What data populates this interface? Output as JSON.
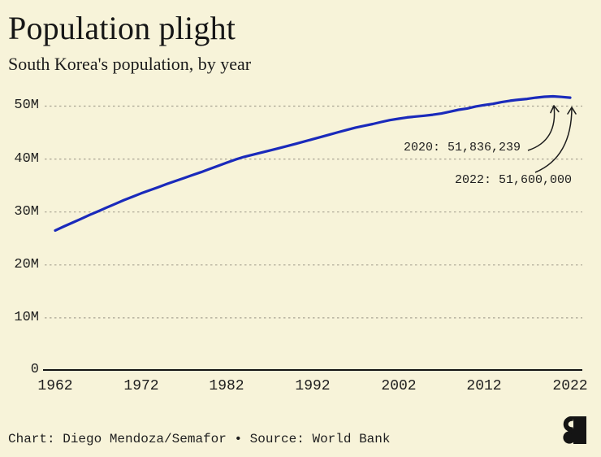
{
  "header": {
    "title": "Population plight",
    "subtitle": "South Korea's population, by year"
  },
  "colors": {
    "background": "#f7f3d9",
    "line": "#1a2abb",
    "grid": "#a9a493",
    "axis": "#141414",
    "text": "#1e1e1e",
    "logo": "#141414"
  },
  "chart_data": {
    "type": "line",
    "title": "Population plight",
    "subtitle": "South Korea's population, by year",
    "xlabel": "",
    "ylabel": "",
    "unit": "people (values in millions)",
    "grid": "horizontal-dashed",
    "legend": "none",
    "xlim": [
      1962,
      2022
    ],
    "ylim_millions": [
      0,
      53
    ],
    "xticks": [
      1962,
      1972,
      1982,
      1992,
      2002,
      2012,
      2022
    ],
    "yticks_millions": [
      0,
      10,
      20,
      30,
      40,
      50
    ],
    "ytick_labels": [
      "0",
      "10M",
      "20M",
      "30M",
      "40M",
      "50M"
    ],
    "x": [
      1962,
      1963,
      1964,
      1965,
      1966,
      1967,
      1968,
      1969,
      1970,
      1971,
      1972,
      1973,
      1974,
      1975,
      1976,
      1977,
      1978,
      1979,
      1980,
      1981,
      1982,
      1983,
      1984,
      1985,
      1986,
      1987,
      1988,
      1989,
      1990,
      1991,
      1992,
      1993,
      1994,
      1995,
      1996,
      1997,
      1998,
      1999,
      2000,
      2001,
      2002,
      2003,
      2004,
      2005,
      2006,
      2007,
      2008,
      2009,
      2010,
      2011,
      2012,
      2013,
      2014,
      2015,
      2016,
      2017,
      2018,
      2019,
      2020,
      2021,
      2022
    ],
    "series": [
      {
        "name": "South Korea population (millions)",
        "values": [
          26.51,
          27.26,
          27.98,
          28.7,
          29.44,
          30.13,
          30.84,
          31.54,
          32.24,
          32.88,
          33.51,
          34.1,
          34.69,
          35.28,
          35.85,
          36.41,
          36.97,
          37.53,
          38.12,
          38.72,
          39.33,
          39.91,
          40.41,
          40.81,
          41.21,
          41.62,
          42.03,
          42.45,
          42.87,
          43.3,
          43.75,
          44.19,
          44.64,
          45.09,
          45.52,
          45.95,
          46.29,
          46.62,
          47.01,
          47.36,
          47.62,
          47.86,
          48.04,
          48.18,
          48.37,
          48.6,
          48.95,
          49.31,
          49.55,
          49.94,
          50.2,
          50.43,
          50.75,
          51.01,
          51.22,
          51.36,
          51.59,
          51.76,
          51.84,
          51.74,
          51.6
        ]
      }
    ],
    "annotations": [
      {
        "label": "2020: 51,836,239",
        "year": 2020,
        "value": 51836239
      },
      {
        "label": "2022: 51,600,000",
        "year": 2022,
        "value": 51600000
      }
    ]
  },
  "footer": {
    "credit": "Chart: Diego Mendoza/Semafor • Source: World Bank",
    "logo": "semafor-s-logo"
  }
}
